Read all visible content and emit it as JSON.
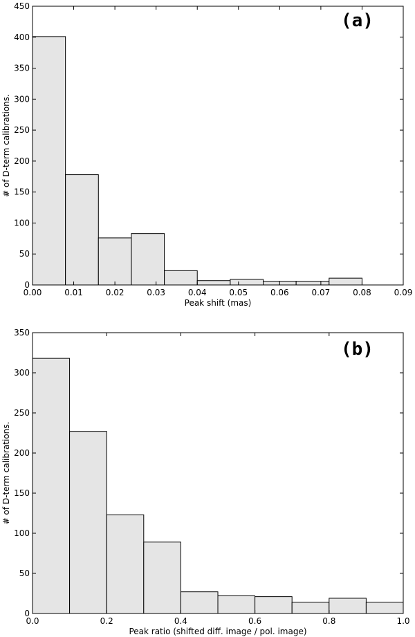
{
  "chart_data": [
    {
      "type": "bar",
      "panel_label": "(a)",
      "xlabel": "Peak shift (mas)",
      "ylabel": "# of D-term calibrations.",
      "xlim": [
        0.0,
        0.09
      ],
      "ylim": [
        0,
        450
      ],
      "xticks": [
        "0.00",
        "0.01",
        "0.02",
        "0.03",
        "0.04",
        "0.05",
        "0.06",
        "0.07",
        "0.08",
        "0.09"
      ],
      "yticks": [
        "0",
        "50",
        "100",
        "150",
        "200",
        "250",
        "300",
        "350",
        "400",
        "450"
      ],
      "bin_edges": [
        0.0,
        0.008,
        0.016,
        0.024,
        0.032,
        0.04,
        0.048,
        0.056,
        0.064,
        0.072,
        0.08
      ],
      "values": [
        401,
        178,
        76,
        83,
        23,
        7,
        9,
        6,
        6,
        11
      ],
      "grid": false,
      "legend": "none"
    },
    {
      "type": "bar",
      "panel_label": "(b)",
      "xlabel": "Peak ratio (shifted diff. image / pol. image)",
      "ylabel": "# of D-term calibrations.",
      "xlim": [
        0.0,
        1.0
      ],
      "ylim": [
        0,
        350
      ],
      "xticks": [
        "0.0",
        "0.2",
        "0.4",
        "0.6",
        "0.8",
        "1.0"
      ],
      "yticks": [
        "0",
        "50",
        "100",
        "150",
        "200",
        "250",
        "300",
        "350"
      ],
      "bin_edges": [
        0.0,
        0.1,
        0.2,
        0.3,
        0.4,
        0.5,
        0.6,
        0.7,
        0.8,
        0.9,
        1.0
      ],
      "values": [
        318,
        227,
        123,
        89,
        27,
        22,
        21,
        14,
        19,
        14
      ],
      "grid": false,
      "legend": "none"
    }
  ]
}
